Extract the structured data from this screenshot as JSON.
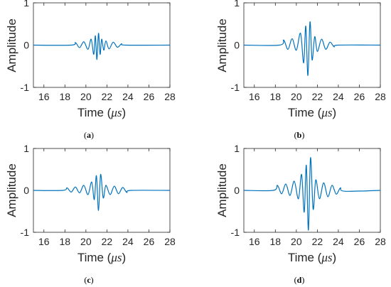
{
  "figure": {
    "panels": [
      {
        "label_open": "(",
        "label_letter": "a",
        "label_close": ")"
      },
      {
        "label_open": "(",
        "label_letter": "b",
        "label_close": ")"
      },
      {
        "label_open": "(",
        "label_letter": "c",
        "label_close": ")"
      },
      {
        "label_open": "(",
        "label_letter": "d",
        "label_close": ")"
      }
    ]
  },
  "chart_data": [
    {
      "type": "line",
      "title": "",
      "xlabel_prefix": "Time (",
      "xlabel_unit": "μs",
      "xlabel_suffix": ")",
      "ylabel": "Amplitude",
      "xlim": [
        15,
        28
      ],
      "ylim": [
        -1,
        1
      ],
      "xticks": [
        16,
        18,
        20,
        22,
        24,
        26,
        28
      ],
      "yticks": [
        -1,
        0,
        1
      ],
      "grid": false,
      "line_color": "#0072BD",
      "series": [
        {
          "x": [
            15,
            18.6,
            19.0,
            19.4,
            19.8,
            20.2,
            20.5,
            20.75,
            20.9,
            21.05,
            21.2,
            21.35,
            21.5,
            21.7,
            21.9,
            22.2,
            22.6,
            23.0,
            23.4,
            23.8,
            28
          ],
          "y": [
            0,
            0,
            0.06,
            -0.06,
            0.08,
            -0.1,
            0.14,
            -0.22,
            0.22,
            -0.34,
            0.28,
            -0.22,
            0.14,
            -0.12,
            0.1,
            -0.09,
            0.07,
            -0.05,
            0.03,
            0,
            0
          ]
        }
      ]
    },
    {
      "type": "line",
      "title": "",
      "xlabel_prefix": "Time (",
      "xlabel_unit": "μs",
      "xlabel_suffix": ")",
      "ylabel": "Amplitude",
      "xlim": [
        15,
        28
      ],
      "ylim": [
        -1,
        1
      ],
      "xticks": [
        16,
        18,
        20,
        22,
        24,
        26,
        28
      ],
      "yticks": [
        -1,
        0,
        1
      ],
      "grid": false,
      "line_color": "#0072BD",
      "series": [
        {
          "x": [
            15,
            18.4,
            18.8,
            19.2,
            19.6,
            20.0,
            20.4,
            20.7,
            20.9,
            21.1,
            21.3,
            21.5,
            21.75,
            22.0,
            22.4,
            22.8,
            23.2,
            23.6,
            24.0,
            28
          ],
          "y": [
            0,
            0,
            0.12,
            -0.1,
            0.15,
            -0.12,
            0.28,
            -0.42,
            0.45,
            -0.72,
            0.55,
            -0.35,
            0.2,
            -0.15,
            0.14,
            -0.1,
            0.07,
            -0.04,
            0,
            0
          ]
        }
      ]
    },
    {
      "type": "line",
      "title": "",
      "xlabel_prefix": "Time (",
      "xlabel_unit": "μs",
      "xlabel_suffix": ")",
      "ylabel": "Amplitude",
      "xlim": [
        15,
        28
      ],
      "ylim": [
        -1,
        1
      ],
      "xticks": [
        16,
        18,
        20,
        22,
        24,
        26,
        28
      ],
      "yticks": [
        -1,
        0,
        1
      ],
      "grid": false,
      "line_color": "#0072BD",
      "series": [
        {
          "x": [
            15,
            17.8,
            18.2,
            18.6,
            19.0,
            19.4,
            19.8,
            20.2,
            20.55,
            20.8,
            21.0,
            21.2,
            21.4,
            21.65,
            21.9,
            22.3,
            22.7,
            23.1,
            23.5,
            23.9,
            24.3,
            28
          ],
          "y": [
            0,
            0,
            0.06,
            -0.04,
            0.08,
            -0.06,
            0.12,
            -0.1,
            0.2,
            -0.22,
            0.35,
            -0.48,
            0.38,
            -0.18,
            0.12,
            -0.1,
            0.1,
            -0.08,
            0.07,
            -0.05,
            0,
            0
          ]
        }
      ]
    },
    {
      "type": "line",
      "title": "",
      "xlabel_prefix": "Time (",
      "xlabel_unit": "μs",
      "xlabel_suffix": ")",
      "ylabel": "Amplitude",
      "xlim": [
        15,
        28
      ],
      "ylim": [
        -1,
        1
      ],
      "xticks": [
        16,
        18,
        20,
        22,
        24,
        26,
        28
      ],
      "yticks": [
        -1,
        0,
        1
      ],
      "grid": false,
      "line_color": "#0072BD",
      "series": [
        {
          "x": [
            15,
            17.8,
            18.2,
            18.6,
            19.0,
            19.4,
            19.8,
            20.2,
            20.5,
            20.75,
            20.95,
            21.15,
            21.35,
            21.6,
            21.85,
            22.2,
            22.6,
            23.0,
            23.4,
            23.8,
            24.2,
            24.6,
            28
          ],
          "y": [
            0,
            0,
            0.12,
            -0.08,
            0.15,
            -0.12,
            0.22,
            -0.2,
            0.38,
            -0.52,
            0.6,
            -0.95,
            0.78,
            -0.45,
            0.25,
            -0.2,
            0.18,
            -0.15,
            0.12,
            -0.09,
            0.06,
            -0.02,
            0
          ]
        }
      ]
    }
  ]
}
